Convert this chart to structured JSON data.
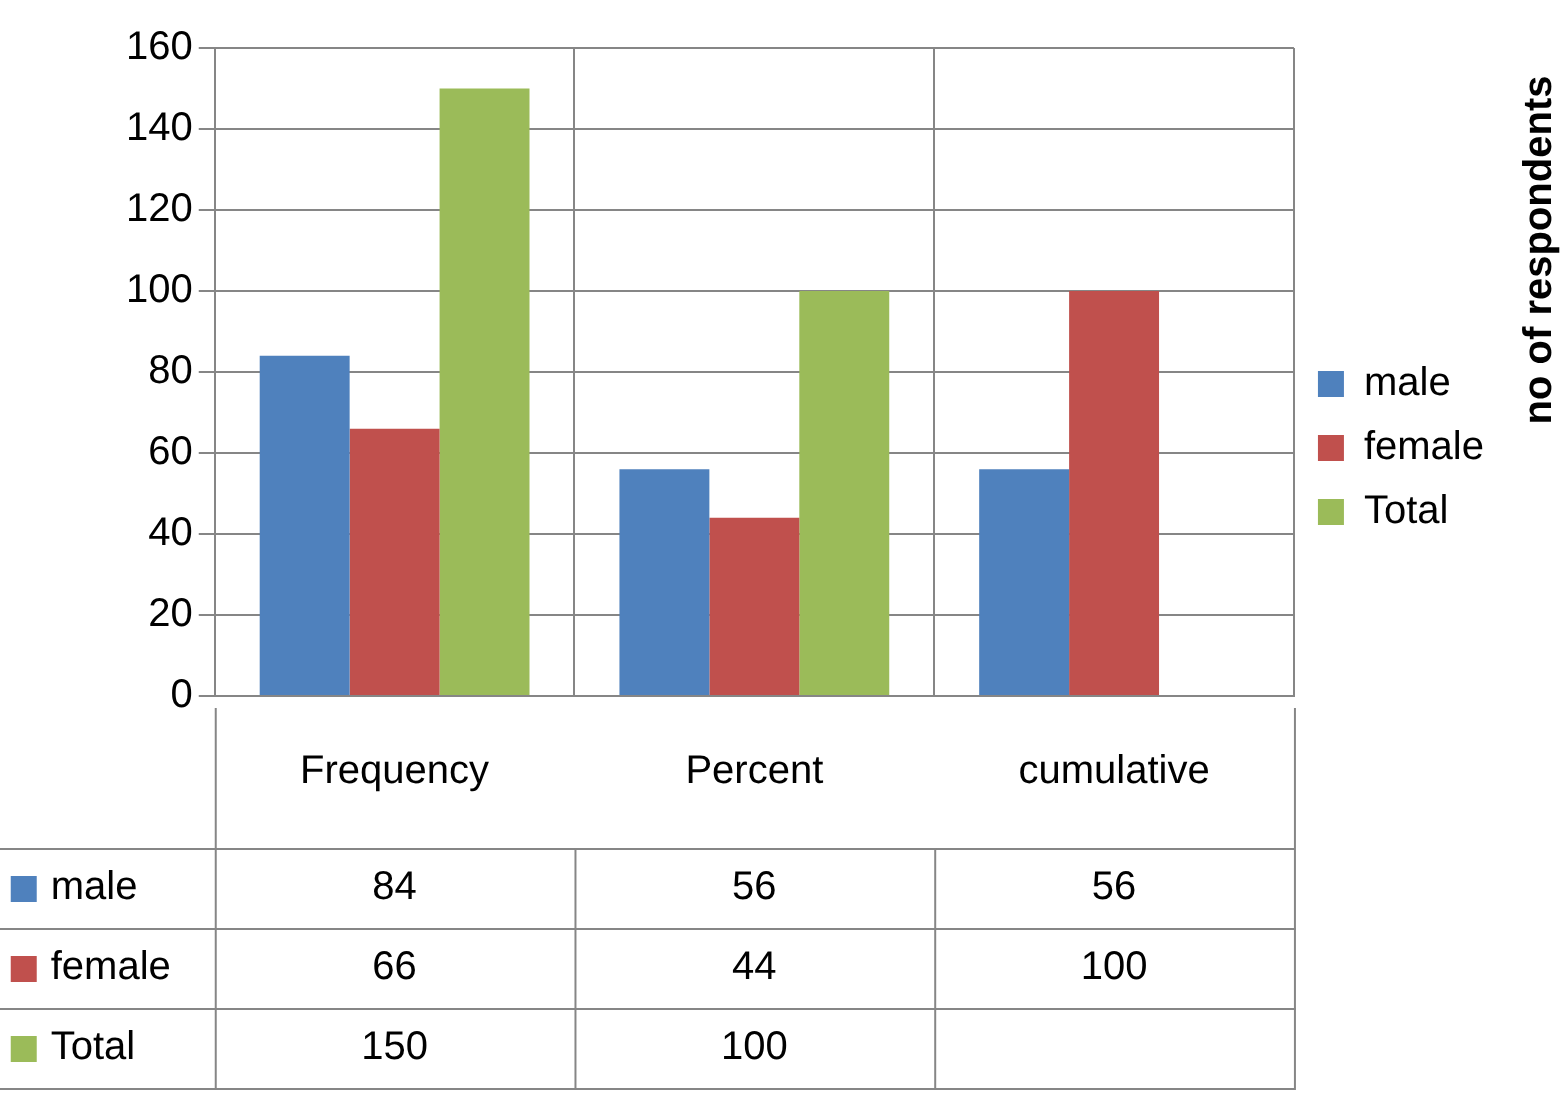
{
  "chart_data": {
    "type": "bar",
    "annotations": [
      "no of respondents"
    ],
    "categories": [
      "Frequency",
      "Percent",
      "cumulative"
    ],
    "series": [
      {
        "name": "male",
        "color": "#4f81bd",
        "values": [
          84,
          56,
          56
        ]
      },
      {
        "name": "female",
        "color": "#c0504d",
        "values": [
          66,
          44,
          100
        ]
      },
      {
        "name": "Total",
        "color": "#9bbb59",
        "values": [
          150,
          100,
          null
        ]
      }
    ],
    "ylim": [
      0,
      160
    ],
    "yticks": [
      0,
      20,
      40,
      60,
      80,
      100,
      120,
      140,
      160
    ],
    "grid": true,
    "legend": "right",
    "data_labels": true
  }
}
